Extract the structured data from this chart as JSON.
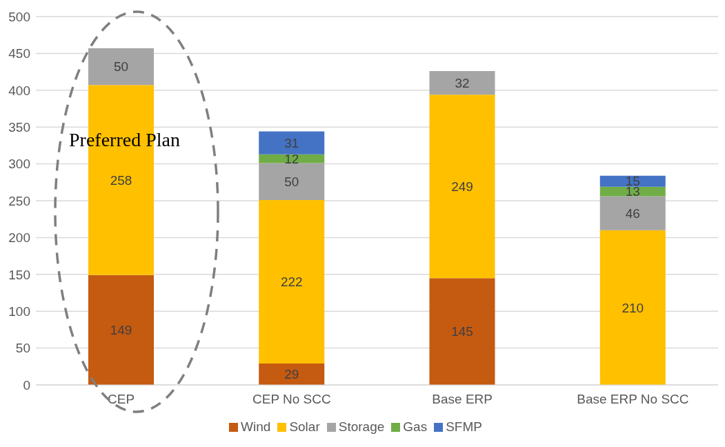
{
  "chart_data": {
    "type": "bar",
    "stacked": true,
    "categories": [
      "CEP",
      "CEP No SCC",
      "Base ERP",
      "Base ERP No SCC"
    ],
    "series": [
      {
        "name": "Wind",
        "color": "#c55a11",
        "values": [
          149,
          29,
          145,
          null
        ]
      },
      {
        "name": "Solar",
        "color": "#ffc000",
        "values": [
          258,
          222,
          249,
          210
        ]
      },
      {
        "name": "Storage",
        "color": "#a5a5a5",
        "values": [
          50,
          50,
          32,
          46
        ]
      },
      {
        "name": "Gas",
        "color": "#70ad47",
        "values": [
          null,
          12,
          null,
          13
        ]
      },
      {
        "name": "SFMP",
        "color": "#4472c4",
        "values": [
          null,
          31,
          null,
          15
        ]
      }
    ],
    "ylim": [
      0,
      500
    ],
    "yticks": [
      0,
      50,
      100,
      150,
      200,
      250,
      300,
      350,
      400,
      450,
      500
    ],
    "grid": "y",
    "legend": "bottom",
    "data_labels": true,
    "annotations": [
      "Preferred Plan"
    ]
  }
}
